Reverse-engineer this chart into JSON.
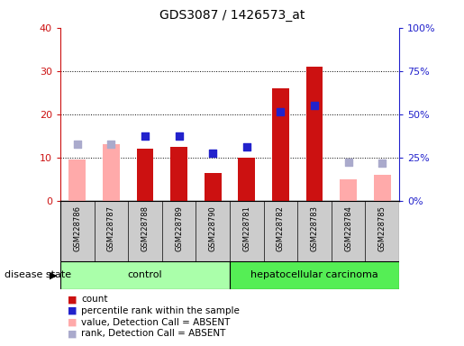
{
  "title": "GDS3087 / 1426573_at",
  "samples": [
    "GSM228786",
    "GSM228787",
    "GSM228788",
    "GSM228789",
    "GSM228790",
    "GSM228781",
    "GSM228782",
    "GSM228783",
    "GSM228784",
    "GSM228785"
  ],
  "groups": [
    "control",
    "control",
    "control",
    "control",
    "control",
    "hepatocellular carcinoma",
    "hepatocellular carcinoma",
    "hepatocellular carcinoma",
    "hepatocellular carcinoma",
    "hepatocellular carcinoma"
  ],
  "count": [
    null,
    null,
    12.0,
    12.5,
    6.5,
    10.0,
    26.0,
    31.0,
    null,
    null
  ],
  "percentile_rank_pct": [
    null,
    null,
    37.5,
    37.5,
    27.5,
    31.0,
    51.5,
    55.0,
    null,
    null
  ],
  "absent_value": [
    9.5,
    13.0,
    null,
    null,
    null,
    null,
    null,
    null,
    5.0,
    6.0
  ],
  "absent_rank_pct": [
    32.5,
    32.5,
    null,
    null,
    null,
    null,
    null,
    null,
    22.5,
    21.5
  ],
  "ylim_left": [
    0,
    40
  ],
  "ylim_right": [
    0,
    100
  ],
  "yticks_left": [
    0,
    10,
    20,
    30,
    40
  ],
  "yticks_right": [
    0,
    25,
    50,
    75,
    100
  ],
  "yticklabels_right": [
    "0%",
    "25%",
    "50%",
    "75%",
    "100%"
  ],
  "color_count": "#cc1111",
  "color_percentile": "#2222cc",
  "color_absent_value": "#ffaaaa",
  "color_absent_rank": "#aaaacc",
  "bar_width": 0.5,
  "dot_size": 40,
  "control_color": "#aaffaa",
  "hcc_color": "#55ee55"
}
